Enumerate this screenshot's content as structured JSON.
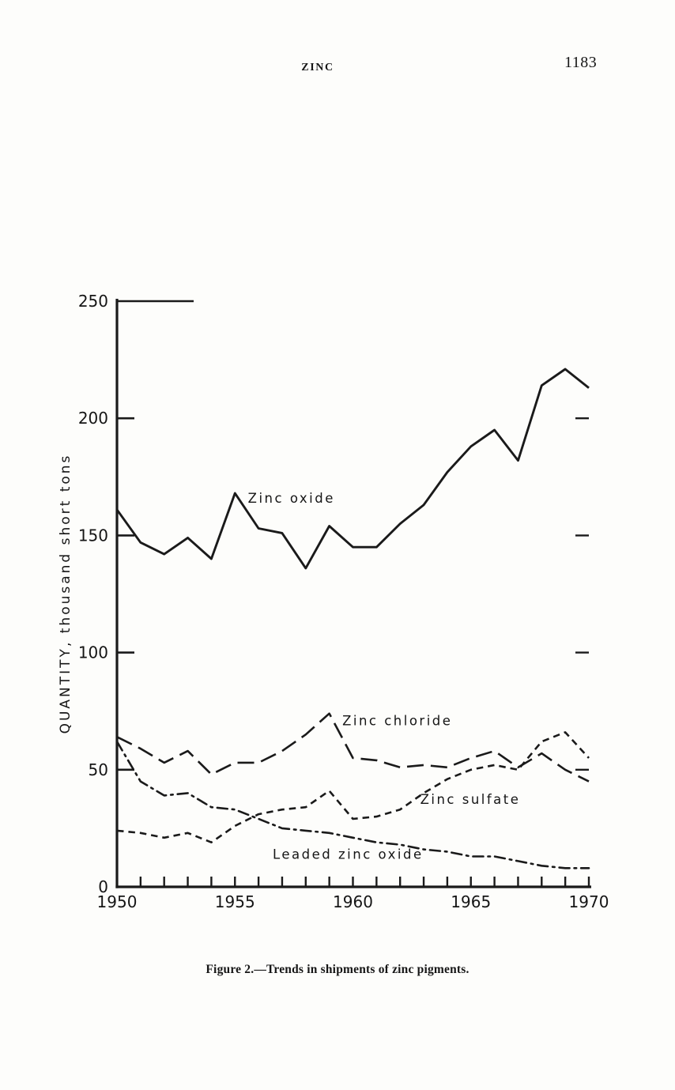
{
  "page": {
    "header": "ZINC",
    "page_number": "1183",
    "caption": "Figure 2.—Trends in shipments of zinc pigments."
  },
  "chart_data": {
    "type": "line",
    "title": "",
    "xlabel": "",
    "ylabel": "QUANTITY, thousand short tons",
    "xlim": [
      1950,
      1970
    ],
    "ylim": [
      0,
      250
    ],
    "yticks": [
      0,
      50,
      100,
      150,
      200,
      250
    ],
    "xticks_labeled": [
      1950,
      1955,
      1960,
      1965,
      1970
    ],
    "grid": false,
    "legend": "inline-labels",
    "x": [
      1950,
      1951,
      1952,
      1953,
      1954,
      1955,
      1956,
      1957,
      1958,
      1959,
      1960,
      1961,
      1962,
      1963,
      1964,
      1965,
      1966,
      1967,
      1968,
      1969,
      1970
    ],
    "series": [
      {
        "name": "Zinc oxide",
        "style": "solid",
        "values": [
          161,
          147,
          142,
          149,
          140,
          168,
          153,
          151,
          136,
          154,
          145,
          145,
          155,
          163,
          177,
          188,
          195,
          182,
          214,
          221,
          213
        ],
        "label_x": 1955.55,
        "label_y": 164
      },
      {
        "name": "Zinc chloride",
        "style": "long-dash",
        "values": [
          64,
          59,
          53,
          58,
          48,
          53,
          53,
          58,
          65,
          74,
          55,
          54,
          51,
          52,
          51,
          55,
          58,
          51,
          57,
          50,
          45
        ],
        "label_x": 1959.55,
        "label_y": 69
      },
      {
        "name": "Zinc sulfate",
        "style": "short-dash",
        "values": [
          24,
          23,
          21,
          23,
          19,
          26,
          31,
          33,
          34,
          41,
          29,
          30,
          33,
          40,
          46,
          50,
          52,
          50,
          62,
          66,
          55
        ],
        "label_x": 1962.85,
        "label_y": 35.5
      },
      {
        "name": "Leaded zinc oxide",
        "style": "dash-dot",
        "values": [
          62,
          45,
          39,
          40,
          34,
          33,
          29,
          25,
          24,
          23,
          21,
          19,
          18,
          16,
          15,
          13,
          13,
          11,
          9,
          8,
          8
        ],
        "label_x": 1956.6,
        "label_y": 12
      }
    ]
  }
}
